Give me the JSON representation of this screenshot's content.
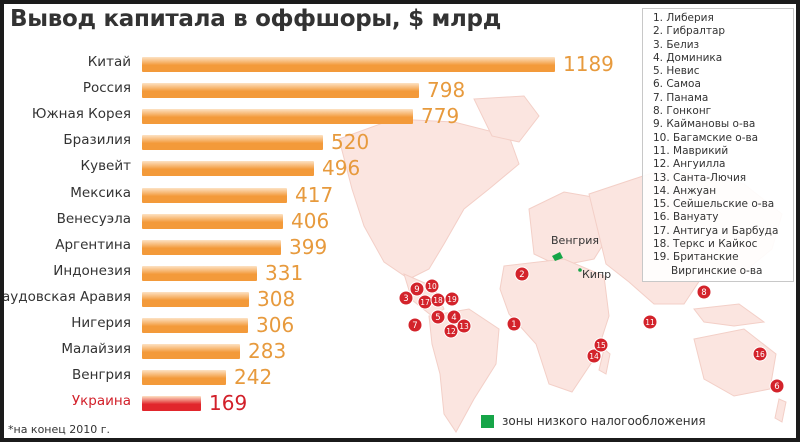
{
  "title": "Вывод капитала в оффшоры, $ млрд",
  "chart_data": {
    "type": "bar",
    "orientation": "horizontal",
    "title": "Вывод капитала в оффшоры, $ млрд",
    "categories": [
      "Китай",
      "Россия",
      "Южная Корея",
      "Бразилия",
      "Кувейт",
      "Мексика",
      "Венесуэла",
      "Аргентина",
      "Индонезия",
      "Саудовская Аравия",
      "Нигерия",
      "Малайзия",
      "Венгрия",
      "Украина"
    ],
    "values": [
      1189,
      798,
      779,
      520,
      496,
      417,
      406,
      399,
      331,
      308,
      306,
      283,
      242,
      169
    ],
    "value_labels": [
      "1189",
      "798",
      "779",
      "520",
      "496",
      "417",
      "406",
      "399",
      "331",
      "308",
      "306",
      "283",
      "242",
      "169"
    ],
    "highlight_category": "Украина",
    "colors": {
      "bar": "#f39a3a",
      "bar_highlight": "#e1262c",
      "value_text": "#e79a3d",
      "highlight_text": "#d2202a"
    },
    "xlim": [
      0,
      1189
    ]
  },
  "offshore_list": [
    "1. Либерия",
    "2. Гибралтар",
    "3. Белиз",
    "4. Доминика",
    "5. Невис",
    "6. Самоа",
    "7. Панама",
    "8. Гонконг",
    "9. Каймановы о-ва",
    "10. Багамские о-ва",
    "11. Маврикий",
    "12. Ангуилла",
    "13. Санта-Лючия",
    "14. Анжуан",
    "15. Сейшельские о-ва",
    "16. Вануату",
    "17. Антигуа и Барбуда",
    "18. Теркс и Кайкос",
    "19. Британские",
    "Виргинские о-ва"
  ],
  "map": {
    "labels": {
      "hungary": "Венгрия",
      "cyprus": "Кипр"
    },
    "legend": "зоны низкого налогообложения",
    "marker_color": "#d3232b",
    "zone_color": "#16a548",
    "markers": [
      "1",
      "2",
      "3",
      "4",
      "5",
      "6",
      "7",
      "8",
      "9",
      "10",
      "11",
      "12",
      "13",
      "14",
      "15",
      "16",
      "17",
      "18",
      "19"
    ]
  },
  "footnote": "*на конец 2010 г."
}
